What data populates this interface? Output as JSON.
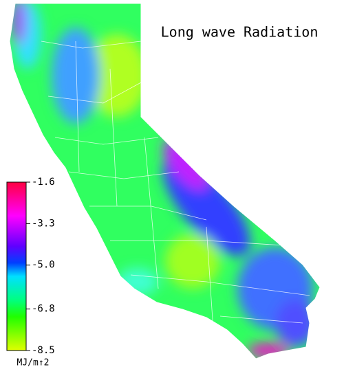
{
  "title": "Long wave Radiation",
  "legend": {
    "range": [
      -1.6,
      -8.5
    ],
    "ticks": [
      -1.6,
      -3.3,
      {
        "value": -5.0,
        "label": "-5.0"
      },
      -6.8,
      -8.5
    ],
    "unit": "MJ/m↑2"
  }
}
